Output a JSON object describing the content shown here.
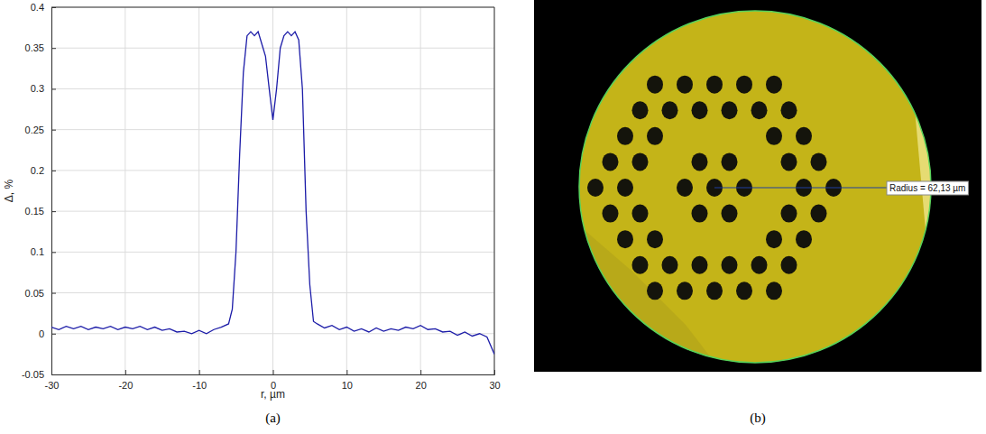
{
  "chart_data": {
    "type": "line",
    "x_label": "r, µm",
    "y_label": "Δ, %",
    "x": [
      -30,
      -29,
      -28,
      -27,
      -26,
      -25,
      -24,
      -23,
      -22,
      -21,
      -20,
      -19,
      -18,
      -17,
      -16,
      -15,
      -14,
      -13,
      -12,
      -11,
      -10,
      -9,
      -8,
      -7,
      -6,
      -5.5,
      -5,
      -4.5,
      -4,
      -3.5,
      -3,
      -2.5,
      -2,
      -1.5,
      -1,
      -0.5,
      0,
      0.5,
      1,
      1.5,
      2,
      2.5,
      3,
      3.5,
      4,
      4.5,
      5,
      5.5,
      6,
      7,
      8,
      9,
      10,
      11,
      12,
      13,
      14,
      15,
      16,
      17,
      18,
      19,
      20,
      21,
      22,
      23,
      24,
      25,
      26,
      27,
      28,
      29,
      30
    ],
    "values": [
      0.008,
      0.005,
      0.009,
      0.006,
      0.009,
      0.005,
      0.008,
      0.006,
      0.009,
      0.005,
      0.008,
      0.006,
      0.009,
      0.005,
      0.008,
      0.004,
      0.006,
      0.002,
      0.003,
      0,
      0.004,
      0,
      0.005,
      0.008,
      0.012,
      0.03,
      0.1,
      0.22,
      0.32,
      0.365,
      0.37,
      0.365,
      0.37,
      0.355,
      0.34,
      0.3,
      0.262,
      0.3,
      0.35,
      0.365,
      0.37,
      0.365,
      0.37,
      0.36,
      0.3,
      0.15,
      0.06,
      0.015,
      0.012,
      0.007,
      0.01,
      0.005,
      0.008,
      0.003,
      0.006,
      0.002,
      0.007,
      0.003,
      0.006,
      0.004,
      0.008,
      0.006,
      0.01,
      0.005,
      0.006,
      0.002,
      0.003,
      -0.002,
      0.002,
      -0.003,
      0,
      -0.004,
      -0.025
    ],
    "color": "#1c1ca8",
    "xlim": [
      -30,
      30
    ],
    "xticks": [
      -30,
      -20,
      -10,
      0,
      10,
      20,
      30
    ],
    "ylim": [
      -0.05,
      0.4
    ],
    "yticks": [
      -0.05,
      0,
      0.05,
      0.1,
      0.15,
      0.2,
      0.25,
      0.3,
      0.35,
      0.4
    ],
    "grid": true
  },
  "panel_labels": [
    "(a)",
    "(b)"
  ],
  "photo": {
    "annotation": "Radius = 62,13 µm"
  }
}
